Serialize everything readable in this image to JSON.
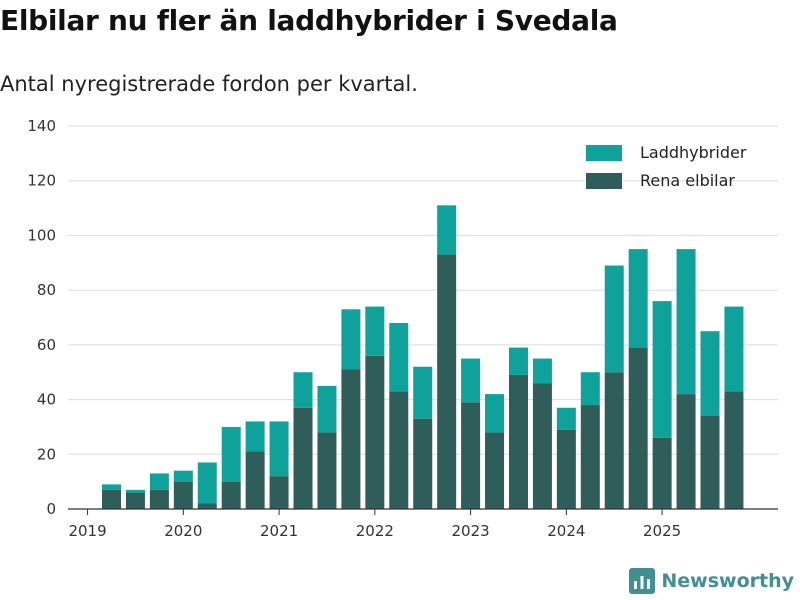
{
  "chart_data": {
    "type": "bar",
    "stacked": true,
    "title": "Elbilar nu fler än laddhybrider i Svedala",
    "subtitle": "Antal nyregistrerade fordon per kvartal.",
    "xlabel": "",
    "ylabel": "",
    "ylim": [
      0,
      140
    ],
    "yticks": [
      0,
      20,
      40,
      60,
      80,
      100,
      120,
      140
    ],
    "xtick_labels": [
      "2019",
      "2020",
      "2021",
      "2022",
      "2023",
      "2024",
      "2025"
    ],
    "xtick_quarter_index": [
      0,
      4,
      8,
      12,
      16,
      20,
      24
    ],
    "grid": true,
    "legend_position": "top-right",
    "categories": [
      "2019 Q2",
      "2019 Q3",
      "2019 Q4",
      "2020 Q1",
      "2020 Q2",
      "2020 Q3",
      "2020 Q4",
      "2021 Q1",
      "2021 Q2",
      "2021 Q3",
      "2021 Q4",
      "2022 Q1",
      "2022 Q2",
      "2022 Q3",
      "2022 Q4",
      "2023 Q1",
      "2023 Q2",
      "2023 Q3",
      "2023 Q4",
      "2024 Q1",
      "2024 Q2",
      "2024 Q3",
      "2024 Q4",
      "2025 Q1",
      "2025 Q2",
      "2025 Q3",
      "2025 Q4"
    ],
    "series": [
      {
        "name": "Rena elbilar",
        "color": "#2f5d5a",
        "values": [
          7,
          6,
          7,
          10,
          2,
          10,
          21,
          12,
          37,
          28,
          51,
          56,
          43,
          33,
          93,
          39,
          28,
          49,
          46,
          29,
          38,
          50,
          59,
          26,
          42,
          34,
          43
        ]
      },
      {
        "name": "Laddhybrider",
        "color": "#0ea29a",
        "values": [
          2,
          1,
          6,
          4,
          15,
          20,
          11,
          20,
          13,
          17,
          22,
          18,
          25,
          19,
          18,
          16,
          14,
          10,
          9,
          8,
          12,
          39,
          36,
          50,
          53,
          31,
          31
        ]
      }
    ]
  },
  "brand": {
    "name": "Newsworthy"
  }
}
